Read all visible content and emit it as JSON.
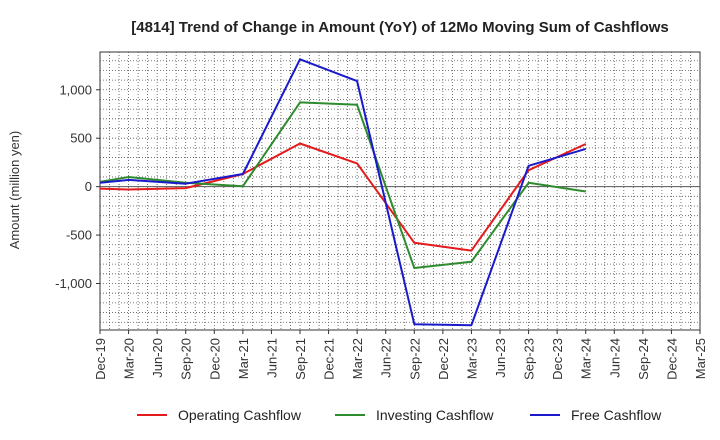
{
  "chart_data": {
    "type": "line",
    "title": "[4814]  Trend of Change in Amount (YoY) of 12Mo Moving Sum of Cashflows",
    "xlabel": "",
    "ylabel": "Amount (million yen)",
    "categories": [
      "Dec-19",
      "Mar-20",
      "Jun-20",
      "Sep-20",
      "Dec-20",
      "Mar-21",
      "Jun-21",
      "Sep-21",
      "Dec-21",
      "Mar-22",
      "Jun-22",
      "Sep-22",
      "Dec-22",
      "Mar-23",
      "Jun-23",
      "Sep-23",
      "Dec-23",
      "Mar-24",
      "Jun-24",
      "Sep-24",
      "Dec-24",
      "Mar-25"
    ],
    "ylim": [
      -1480,
      1390
    ],
    "yticks": [
      1000,
      500,
      0,
      -500,
      -1000
    ],
    "ytick_labels": [
      "1,000",
      "500",
      "0",
      "-500",
      "-1,000"
    ],
    "grid": true,
    "legend_position": "bottom",
    "series": [
      {
        "name": "Operating Cashflow",
        "color": "#e41a1c",
        "values": [
          -20,
          -30,
          null,
          -15,
          null,
          130,
          null,
          445,
          null,
          240,
          null,
          -580,
          null,
          -660,
          null,
          170,
          null,
          440,
          null,
          null,
          null,
          null
        ]
      },
      {
        "name": "Investing Cashflow",
        "color": "#2e8b2e",
        "values": [
          50,
          100,
          null,
          40,
          null,
          5,
          null,
          870,
          null,
          845,
          null,
          -840,
          null,
          -775,
          null,
          40,
          null,
          -50,
          null,
          null,
          null,
          null
        ]
      },
      {
        "name": "Free Cashflow",
        "color": "#1a1acc",
        "values": [
          40,
          70,
          null,
          30,
          null,
          130,
          null,
          1315,
          null,
          1090,
          null,
          -1420,
          null,
          -1430,
          null,
          215,
          null,
          390,
          null,
          null,
          null,
          null
        ]
      }
    ]
  }
}
